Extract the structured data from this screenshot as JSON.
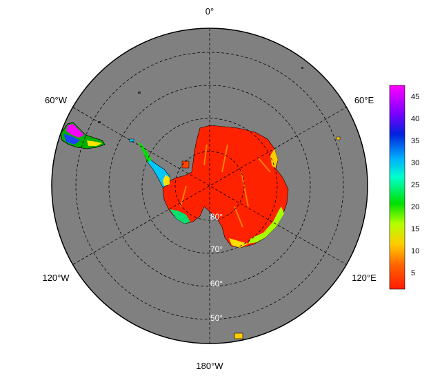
{
  "map": {
    "projection": "south polar stereographic",
    "ocean_color": "#808080",
    "graticule_style": "dashed black",
    "lon_labels": [
      "0°",
      "60°E",
      "120°E",
      "180°W",
      "120°W",
      "60°W"
    ],
    "lat_labels": [
      "80°",
      "70°",
      "60°",
      "50°"
    ]
  },
  "colorbar": {
    "ticks": [
      "45",
      "40",
      "35",
      "30",
      "25",
      "20",
      "15",
      "10",
      "5"
    ],
    "scale": "rainbow: red (low) → orange → yellow → green → cyan → blue → purple → magenta (high)"
  }
}
